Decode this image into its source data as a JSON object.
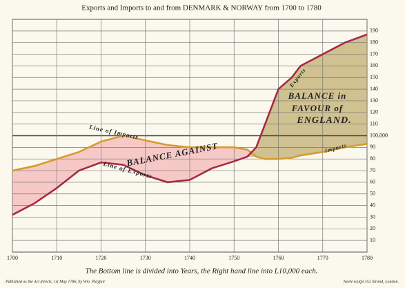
{
  "chart_data": {
    "type": "line",
    "title": "Exports and Imports to and from DENMARK & NORWAY from 1700 to 1780",
    "x": [
      1700,
      1705,
      1710,
      1715,
      1720,
      1725,
      1730,
      1735,
      1740,
      1745,
      1750,
      1753,
      1755,
      1757,
      1760,
      1763,
      1765,
      1770,
      1775,
      1780
    ],
    "series": [
      {
        "name": "Imports",
        "color": "#d89a2c",
        "values": [
          70,
          74,
          80,
          86,
          95,
          100,
          96,
          92,
          90,
          90,
          90,
          88,
          82,
          80,
          80,
          81,
          83,
          86,
          90,
          93
        ]
      },
      {
        "name": "Exports",
        "color": "#a52a45",
        "values": [
          32,
          42,
          55,
          70,
          77,
          75,
          66,
          60,
          62,
          72,
          78,
          82,
          90,
          110,
          140,
          150,
          160,
          170,
          180,
          187
        ]
      }
    ],
    "xlim": [
      1700,
      1780
    ],
    "xticks": [
      1700,
      1710,
      1720,
      1730,
      1740,
      1750,
      1760,
      1770,
      1780
    ],
    "ylim": [
      0,
      200
    ],
    "yticks": [
      10,
      20,
      30,
      40,
      50,
      60,
      70,
      80,
      90,
      {
        "value": 100,
        "label": "100,000"
      },
      110,
      120,
      130,
      140,
      150,
      160,
      170,
      180,
      190
    ],
    "grid": true,
    "annotations": [
      "Line of Imports",
      "Line of Exports",
      "BALANCE AGAINST",
      "BALANCE in",
      "FAVOUR of",
      "ENGLAND.",
      "Exports",
      "Imports"
    ],
    "caption": "The Bottom line is divided into Years, the Right hand line into L10,000 each.",
    "notes": [
      "Published as the Act directs, 1st May 1786, by Wm. Playfair",
      "Neele sculpt 352 Strand, London."
    ]
  }
}
